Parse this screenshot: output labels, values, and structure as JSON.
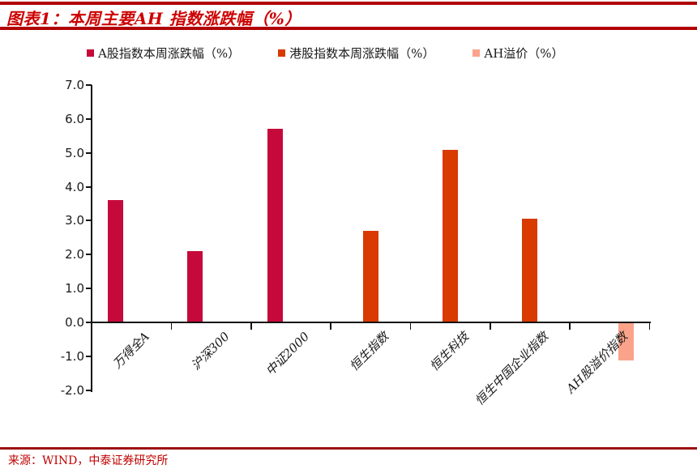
{
  "header": {
    "title": "图表1：本周主要AH 指数涨跌幅（%）"
  },
  "chart_data": {
    "type": "bar",
    "title": "本周主要AH指数涨跌幅（%）",
    "categories": [
      "万得全A",
      "沪深300",
      "中证2000",
      "恒生指数",
      "恒生科技",
      "恒生中国企业指数",
      "AH股溢价指数"
    ],
    "series": [
      {
        "name": "A股指数本周涨跌幅（%）",
        "color": "#c6093b",
        "values": [
          3.6,
          2.1,
          5.7,
          null,
          null,
          null,
          null
        ]
      },
      {
        "name": "港股指数本周涨跌幅（%）",
        "color": "#d93a00",
        "values": [
          null,
          null,
          null,
          2.7,
          5.1,
          3.05,
          null
        ]
      },
      {
        "name": "AH溢价（%）",
        "color": "#fba38a",
        "values": [
          null,
          null,
          null,
          null,
          null,
          null,
          -1.1
        ]
      }
    ],
    "ylim": [
      -2.0,
      7.0
    ],
    "ytick_step": 1.0,
    "yticks": [
      "7.0",
      "6.0",
      "5.0",
      "4.0",
      "3.0",
      "2.0",
      "1.0",
      "0.0",
      "-1.0",
      "-2.0"
    ],
    "grid": false,
    "legend_position": "top",
    "xlabel": "",
    "ylabel": ""
  },
  "footer": {
    "source": "来源：WIND，中泰证券研究所"
  },
  "colors": {
    "title_red": "#cc0000",
    "rule_red": "#b00000",
    "axis_black": "#111111"
  }
}
